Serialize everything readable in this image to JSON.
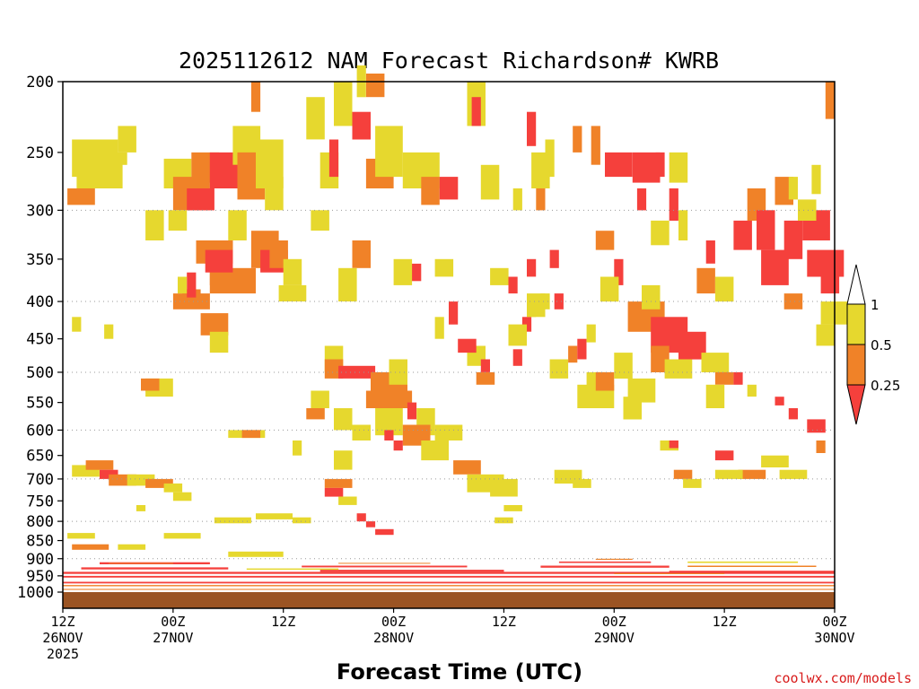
{
  "chart_data": {
    "type": "heatmap",
    "title": "2025112612 NAM Forecast Richardson# KWRB",
    "xlabel": "Forecast Time (UTC)",
    "ylabel": "Pressure (hPa)",
    "credit": "coolwx.com/models",
    "x_range_hours": [
      0,
      84
    ],
    "x_ticks": [
      {
        "hour": 0,
        "label": "12Z",
        "sub1": "26NOV",
        "sub2": "2025"
      },
      {
        "hour": 12,
        "label": "00Z",
        "sub1": "27NOV",
        "sub2": ""
      },
      {
        "hour": 24,
        "label": "12Z",
        "sub1": "",
        "sub2": ""
      },
      {
        "hour": 36,
        "label": "00Z",
        "sub1": "28NOV",
        "sub2": ""
      },
      {
        "hour": 48,
        "label": "12Z",
        "sub1": "",
        "sub2": ""
      },
      {
        "hour": 60,
        "label": "00Z",
        "sub1": "29NOV",
        "sub2": ""
      },
      {
        "hour": 72,
        "label": "12Z",
        "sub1": "",
        "sub2": ""
      },
      {
        "hour": 84,
        "label": "00Z",
        "sub1": "30NOV",
        "sub2": ""
      }
    ],
    "y_range_hpa": [
      200,
      1000
    ],
    "y_ticks": [
      200,
      250,
      300,
      350,
      400,
      450,
      500,
      550,
      600,
      650,
      700,
      750,
      800,
      850,
      900,
      950,
      1000
    ],
    "gridlines_hpa": [
      300,
      400,
      500,
      600,
      700,
      800,
      900
    ],
    "legend": {
      "placement": "right",
      "levels": [
        "1",
        "0.5",
        "0.25"
      ],
      "bins": [
        {
          "range": "> 1",
          "color": "#ffffff"
        },
        {
          "range": "0.5 - 1",
          "color": "#e6d82e"
        },
        {
          "range": "0.25 - 0.5",
          "color": "#f08228"
        },
        {
          "range": "< 0.25",
          "color": "#f5403c"
        }
      ]
    },
    "ground_color": "#9b5423",
    "colors": {
      "y": "#e6d82e",
      "o": "#f08228",
      "r": "#f5403c"
    },
    "cells": [
      [
        "y",
        1.0,
        240,
        5,
        30
      ],
      [
        "y",
        1.5,
        250,
        5,
        30
      ],
      [
        "o",
        0.5,
        280,
        3,
        15
      ],
      [
        "y",
        3.0,
        250,
        4,
        10
      ],
      [
        "y",
        6.0,
        230,
        2,
        20
      ],
      [
        "y",
        11.0,
        255,
        3,
        25
      ],
      [
        "o",
        12.0,
        270,
        4,
        30
      ],
      [
        "r",
        13.5,
        280,
        3,
        20
      ],
      [
        "y",
        11.5,
        300,
        2,
        20
      ],
      [
        "y",
        9.0,
        300,
        2,
        30
      ],
      [
        "o",
        14.0,
        250,
        3,
        25
      ],
      [
        "r",
        16.0,
        250,
        3,
        30
      ],
      [
        "y",
        18.5,
        230,
        3,
        30
      ],
      [
        "o",
        19.0,
        250,
        3,
        40
      ],
      [
        "y",
        21.0,
        240,
        3,
        40
      ],
      [
        "o",
        14.5,
        330,
        4,
        25
      ],
      [
        "o",
        16.0,
        340,
        2,
        40
      ],
      [
        "o",
        16.0,
        360,
        5,
        30
      ],
      [
        "r",
        15.5,
        340,
        3,
        25
      ],
      [
        "o",
        20.5,
        320,
        3,
        40
      ],
      [
        "r",
        21.5,
        340,
        3,
        25
      ],
      [
        "o",
        22.5,
        330,
        2,
        30
      ],
      [
        "y",
        24.0,
        350,
        2,
        30
      ],
      [
        "y",
        18.0,
        300,
        2,
        30
      ],
      [
        "o",
        13.0,
        385,
        2,
        20
      ],
      [
        "o",
        12.0,
        390,
        4,
        20
      ],
      [
        "o",
        15.0,
        415,
        3,
        30
      ],
      [
        "y",
        16.0,
        440,
        2,
        30
      ],
      [
        "r",
        13.5,
        365,
        1,
        30
      ],
      [
        "y",
        12.5,
        370,
        1,
        20
      ],
      [
        "y",
        23.5,
        380,
        3,
        20
      ],
      [
        "y",
        22.0,
        270,
        2,
        30
      ],
      [
        "y",
        27.0,
        300,
        2,
        20
      ],
      [
        "y",
        28.0,
        250,
        2,
        30
      ],
      [
        "r",
        29.0,
        240,
        1,
        30
      ],
      [
        "y",
        29.5,
        200,
        2,
        30
      ],
      [
        "r",
        31.5,
        220,
        2,
        20
      ],
      [
        "o",
        33.0,
        255,
        3,
        25
      ],
      [
        "y",
        34.0,
        230,
        3,
        40
      ],
      [
        "y",
        26.5,
        210,
        2,
        30
      ],
      [
        "o",
        33.0,
        195,
        2,
        15
      ],
      [
        "y",
        32.0,
        190,
        1,
        20
      ],
      [
        "o",
        20.5,
        200,
        1,
        20
      ],
      [
        "y",
        37.0,
        250,
        4,
        30
      ],
      [
        "o",
        39.0,
        270,
        2,
        25
      ],
      [
        "r",
        41.0,
        270,
        2,
        20
      ],
      [
        "y",
        44.0,
        200,
        2,
        30
      ],
      [
        "r",
        44.5,
        210,
        1,
        20
      ],
      [
        "y",
        45.5,
        260,
        2,
        30
      ],
      [
        "o",
        31.5,
        330,
        2,
        30
      ],
      [
        "y",
        30.0,
        360,
        2,
        40
      ],
      [
        "r",
        37.0,
        355,
        2,
        20
      ],
      [
        "y",
        36.0,
        350,
        2,
        30
      ],
      [
        "y",
        40.5,
        350,
        2,
        20
      ],
      [
        "r",
        42.0,
        400,
        1,
        30
      ],
      [
        "y",
        46.5,
        360,
        2,
        20
      ],
      [
        "r",
        48.5,
        370,
        1,
        20
      ],
      [
        "r",
        50.5,
        350,
        1,
        20
      ],
      [
        "y",
        50.5,
        390,
        2,
        30
      ],
      [
        "r",
        50.0,
        420,
        1,
        20
      ],
      [
        "r",
        49.0,
        465,
        1,
        25
      ],
      [
        "y",
        48.5,
        430,
        2,
        30
      ],
      [
        "y",
        44.0,
        460,
        2,
        30
      ],
      [
        "r",
        43.0,
        450,
        2,
        20
      ],
      [
        "y",
        40.5,
        420,
        1,
        30
      ],
      [
        "y",
        28.5,
        460,
        2,
        40
      ],
      [
        "o",
        28.5,
        480,
        2,
        30
      ],
      [
        "r",
        30.0,
        490,
        4,
        20
      ],
      [
        "o",
        33.5,
        500,
        4,
        50
      ],
      [
        "o",
        33.0,
        530,
        5,
        30
      ],
      [
        "y",
        35.5,
        480,
        2,
        40
      ],
      [
        "y",
        34.0,
        560,
        3,
        50
      ],
      [
        "r",
        37.5,
        550,
        1,
        30
      ],
      [
        "y",
        38.5,
        560,
        2,
        50
      ],
      [
        "o",
        37.0,
        590,
        3,
        40
      ],
      [
        "y",
        39.0,
        620,
        3,
        40
      ],
      [
        "r",
        36.0,
        620,
        1,
        20
      ],
      [
        "o",
        42.5,
        660,
        3,
        30
      ],
      [
        "y",
        44.0,
        690,
        4,
        40
      ],
      [
        "y",
        46.5,
        700,
        3,
        40
      ],
      [
        "o",
        45.0,
        500,
        2,
        20
      ],
      [
        "r",
        45.5,
        480,
        1,
        20
      ],
      [
        "y",
        27.0,
        530,
        2,
        30
      ],
      [
        "o",
        26.5,
        560,
        2,
        20
      ],
      [
        "y",
        29.5,
        560,
        2,
        40
      ],
      [
        "y",
        31.5,
        590,
        2,
        30
      ],
      [
        "y",
        29.5,
        640,
        2,
        40
      ],
      [
        "y",
        25.0,
        620,
        1,
        30
      ],
      [
        "r",
        35.0,
        600,
        1,
        20
      ],
      [
        "o",
        28.5,
        700,
        3,
        20
      ],
      [
        "r",
        28.5,
        720,
        2,
        20
      ],
      [
        "y",
        30.0,
        740,
        2,
        20
      ],
      [
        "r",
        32.0,
        780,
        1,
        20
      ],
      [
        "r",
        34.0,
        820,
        2,
        15
      ],
      [
        "r",
        33.0,
        800,
        1,
        15
      ],
      [
        "y",
        1.0,
        670,
        3,
        25
      ],
      [
        "o",
        2.5,
        660,
        3,
        20
      ],
      [
        "r",
        4.0,
        680,
        2,
        20
      ],
      [
        "o",
        5.0,
        690,
        3,
        25
      ],
      [
        "y",
        7.0,
        690,
        3,
        25
      ],
      [
        "o",
        9.0,
        700,
        3,
        20
      ],
      [
        "y",
        11.0,
        710,
        2,
        20
      ],
      [
        "y",
        12.0,
        730,
        2,
        20
      ],
      [
        "y",
        9.0,
        510,
        3,
        30
      ],
      [
        "o",
        8.5,
        510,
        2,
        20
      ],
      [
        "y",
        1.0,
        420,
        1,
        20
      ],
      [
        "y",
        4.5,
        430,
        1,
        20
      ],
      [
        "y",
        16.5,
        790,
        4,
        15
      ],
      [
        "y",
        21.0,
        780,
        4,
        15
      ],
      [
        "y",
        25.0,
        790,
        2,
        15
      ],
      [
        "y",
        18.0,
        600,
        4,
        15
      ],
      [
        "o",
        19.5,
        600,
        2,
        15
      ],
      [
        "y",
        8.0,
        760,
        1,
        15
      ],
      [
        "y",
        0.5,
        830,
        3,
        15
      ],
      [
        "o",
        1.0,
        860,
        4,
        15
      ],
      [
        "y",
        6.0,
        860,
        3,
        15
      ],
      [
        "y",
        11.0,
        830,
        4,
        15
      ],
      [
        "y",
        18.0,
        880,
        6,
        15
      ],
      [
        "y",
        40.5,
        590,
        3,
        30
      ],
      [
        "y",
        53.0,
        480,
        2,
        30
      ],
      [
        "y",
        57.0,
        500,
        2,
        40
      ],
      [
        "y",
        56.0,
        520,
        4,
        40
      ],
      [
        "o",
        58.0,
        500,
        2,
        30
      ],
      [
        "y",
        60.0,
        470,
        2,
        40
      ],
      [
        "y",
        61.5,
        510,
        3,
        40
      ],
      [
        "y",
        61.0,
        540,
        2,
        40
      ],
      [
        "o",
        61.5,
        400,
        4,
        40
      ],
      [
        "r",
        64.0,
        420,
        4,
        50
      ],
      [
        "r",
        67.0,
        440,
        3,
        40
      ],
      [
        "o",
        64.0,
        460,
        2,
        40
      ],
      [
        "y",
        65.5,
        480,
        3,
        30
      ],
      [
        "y",
        69.5,
        470,
        3,
        30
      ],
      [
        "o",
        71.0,
        500,
        2,
        20
      ],
      [
        "r",
        73.0,
        500,
        1,
        20
      ],
      [
        "y",
        74.5,
        520,
        1,
        20
      ],
      [
        "r",
        59.0,
        250,
        3,
        20
      ],
      [
        "r",
        62.0,
        250,
        3,
        25
      ],
      [
        "r",
        64.5,
        250,
        1,
        20
      ],
      [
        "y",
        66.0,
        250,
        2,
        25
      ],
      [
        "r",
        62.5,
        280,
        1,
        20
      ],
      [
        "r",
        66.0,
        280,
        1,
        30
      ],
      [
        "y",
        64.0,
        310,
        2,
        25
      ],
      [
        "y",
        67.0,
        300,
        1,
        30
      ],
      [
        "o",
        58.0,
        320,
        2,
        20
      ],
      [
        "r",
        60.0,
        350,
        1,
        30
      ],
      [
        "y",
        58.5,
        370,
        2,
        30
      ],
      [
        "y",
        63.0,
        380,
        2,
        30
      ],
      [
        "o",
        69.0,
        360,
        2,
        30
      ],
      [
        "y",
        71.0,
        370,
        2,
        30
      ],
      [
        "r",
        70.0,
        330,
        1,
        25
      ],
      [
        "r",
        73.0,
        310,
        2,
        30
      ],
      [
        "o",
        74.5,
        280,
        2,
        30
      ],
      [
        "r",
        75.5,
        300,
        2,
        40
      ],
      [
        "r",
        76.0,
        340,
        3,
        40
      ],
      [
        "r",
        78.5,
        310,
        2,
        40
      ],
      [
        "o",
        77.5,
        270,
        2,
        25
      ],
      [
        "y",
        79.0,
        270,
        1,
        20
      ],
      [
        "r",
        80.5,
        300,
        3,
        30
      ],
      [
        "r",
        81.0,
        340,
        4,
        30
      ],
      [
        "r",
        82.5,
        360,
        2,
        30
      ],
      [
        "y",
        80.0,
        290,
        2,
        20
      ],
      [
        "o",
        78.5,
        390,
        2,
        20
      ],
      [
        "y",
        82.5,
        400,
        3,
        30
      ],
      [
        "o",
        83.0,
        200,
        1,
        25
      ],
      [
        "y",
        81.5,
        260,
        1,
        25
      ],
      [
        "y",
        82.0,
        430,
        2,
        30
      ],
      [
        "r",
        81.0,
        580,
        2,
        25
      ],
      [
        "o",
        82.0,
        620,
        1,
        25
      ],
      [
        "r",
        79.0,
        560,
        1,
        20
      ],
      [
        "r",
        77.5,
        540,
        1,
        15
      ],
      [
        "y",
        70.0,
        520,
        2,
        40
      ],
      [
        "r",
        71.0,
        640,
        2,
        20
      ],
      [
        "o",
        73.5,
        680,
        3,
        20
      ],
      [
        "y",
        76.0,
        650,
        3,
        25
      ],
      [
        "y",
        78.0,
        680,
        3,
        20
      ],
      [
        "o",
        66.5,
        680,
        2,
        20
      ],
      [
        "y",
        67.5,
        700,
        2,
        20
      ],
      [
        "y",
        71.0,
        680,
        3,
        20
      ],
      [
        "y",
        65.0,
        620,
        2,
        20
      ],
      [
        "r",
        66.0,
        620,
        1,
        15
      ],
      [
        "y",
        53.5,
        680,
        3,
        30
      ],
      [
        "y",
        55.5,
        700,
        2,
        20
      ],
      [
        "y",
        48.0,
        760,
        2,
        15
      ],
      [
        "y",
        47.0,
        790,
        2,
        15
      ],
      [
        "y",
        50.5,
        400,
        1,
        20
      ],
      [
        "y",
        52.0,
        390,
        1,
        20
      ],
      [
        "r",
        53.5,
        390,
        1,
        20
      ],
      [
        "o",
        55.0,
        460,
        1,
        25
      ],
      [
        "r",
        56.0,
        450,
        1,
        30
      ],
      [
        "y",
        57.0,
        430,
        1,
        25
      ],
      [
        "r",
        53.0,
        340,
        1,
        20
      ],
      [
        "o",
        51.5,
        280,
        1,
        20
      ],
      [
        "y",
        51.0,
        250,
        2,
        30
      ],
      [
        "y",
        52.5,
        240,
        1,
        30
      ],
      [
        "o",
        55.5,
        230,
        1,
        20
      ],
      [
        "o",
        57.5,
        230,
        1,
        30
      ],
      [
        "r",
        50.5,
        220,
        1,
        25
      ],
      [
        "y",
        49.0,
        280,
        1,
        20
      ]
    ],
    "bands": [
      [
        "r",
        0.0,
        84.0,
        950,
        5
      ],
      [
        "r",
        0.0,
        84.0,
        938,
        6
      ],
      [
        "o",
        0.0,
        84.0,
        978,
        4
      ],
      [
        "o",
        0.0,
        84.0,
        990,
        3
      ],
      [
        "r",
        0.0,
        84.0,
        968,
        5
      ],
      [
        "r",
        4.0,
        16.0,
        910,
        6
      ],
      [
        "r",
        2.0,
        18.0,
        925,
        6
      ],
      [
        "o",
        5.0,
        12.0,
        912,
        2
      ],
      [
        "r",
        26.0,
        44.0,
        920,
        5
      ],
      [
        "r",
        28.0,
        48.0,
        932,
        6
      ],
      [
        "o",
        30.0,
        40.0,
        912,
        2
      ],
      [
        "r",
        52.0,
        66.0,
        920,
        6
      ],
      [
        "r",
        54.0,
        64.0,
        908,
        4
      ],
      [
        "o",
        58.0,
        62.0,
        900,
        3
      ],
      [
        "r",
        66.0,
        84.0,
        935,
        6
      ],
      [
        "o",
        68.0,
        82.0,
        920,
        4
      ],
      [
        "y",
        68.0,
        80.0,
        908,
        4
      ],
      [
        "y",
        20.0,
        30.0,
        928,
        4
      ],
      [
        "o",
        60.0,
        72.0,
        942,
        3
      ]
    ]
  }
}
